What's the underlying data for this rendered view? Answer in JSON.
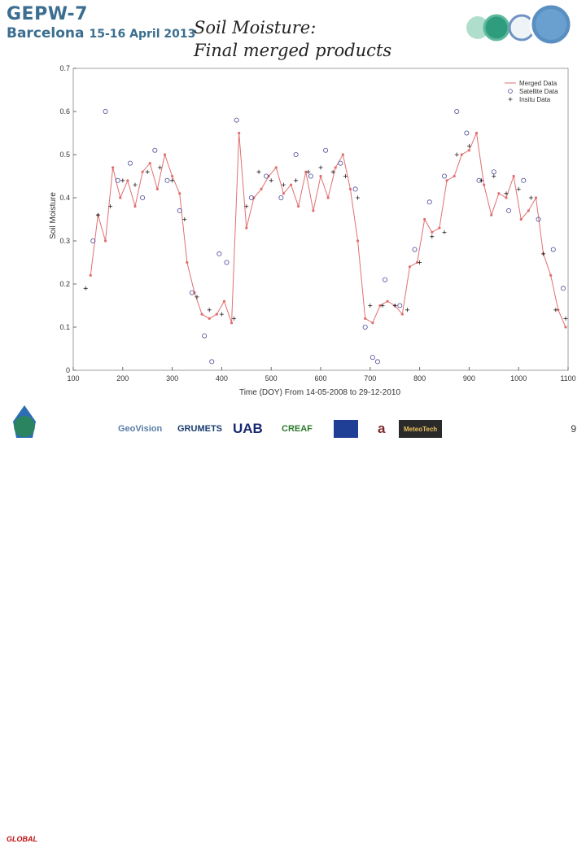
{
  "header": {
    "conference": "GEPW-7",
    "city": "Barcelona",
    "dates": "15-16 April 2013",
    "title_line1": "Soil Moisture:",
    "title_line2": "Final merged products"
  },
  "footer": {
    "slide_number": "9",
    "logos": [
      "GeoVision",
      "GRUMETS",
      "UAB",
      "CREAF",
      "EU flag",
      "a",
      "MeteoTech"
    ],
    "badge": "GLOBAL"
  },
  "colors": {
    "merged": "#e07070",
    "satellite": "#4a4a9a",
    "insitu": "#222222",
    "header_blue": "#3b6e8f"
  },
  "chart_data": {
    "type": "line",
    "ylabel": "Soil Moisture",
    "xlabel": "Time (DOY) From 14-05-2008 to 29-12-2010",
    "xlim": [
      100,
      1100
    ],
    "ylim": [
      0,
      0.7
    ],
    "xticks": [
      100,
      200,
      300,
      400,
      500,
      600,
      700,
      800,
      900,
      1000,
      1100
    ],
    "yticks": [
      0,
      0.1,
      0.2,
      0.3,
      0.4,
      0.5,
      0.6,
      0.7
    ],
    "grid": false,
    "legend_position": "top-right",
    "legend": [
      "Merged Data",
      "Satellite Data",
      "Insitu Data"
    ],
    "series": [
      {
        "name": "Merged Data",
        "style": "line",
        "x": [
          135,
          150,
          165,
          180,
          195,
          210,
          225,
          240,
          255,
          270,
          285,
          300,
          315,
          330,
          345,
          360,
          375,
          390,
          405,
          420,
          435,
          450,
          465,
          480,
          495,
          510,
          525,
          540,
          555,
          570,
          585,
          600,
          615,
          630,
          645,
          660,
          675,
          690,
          705,
          720,
          735,
          750,
          765,
          780,
          795,
          810,
          825,
          840,
          855,
          870,
          885,
          900,
          915,
          930,
          945,
          960,
          975,
          990,
          1005,
          1020,
          1035,
          1050,
          1065,
          1080,
          1095
        ],
        "y": [
          0.22,
          0.36,
          0.3,
          0.47,
          0.4,
          0.44,
          0.38,
          0.46,
          0.48,
          0.42,
          0.5,
          0.45,
          0.41,
          0.25,
          0.18,
          0.13,
          0.12,
          0.13,
          0.16,
          0.11,
          0.55,
          0.33,
          0.4,
          0.42,
          0.45,
          0.47,
          0.41,
          0.43,
          0.38,
          0.46,
          0.37,
          0.45,
          0.4,
          0.47,
          0.5,
          0.42,
          0.3,
          0.12,
          0.11,
          0.15,
          0.16,
          0.15,
          0.13,
          0.24,
          0.25,
          0.35,
          0.32,
          0.33,
          0.44,
          0.45,
          0.5,
          0.51,
          0.55,
          0.43,
          0.36,
          0.41,
          0.4,
          0.45,
          0.35,
          0.37,
          0.4,
          0.27,
          0.22,
          0.14,
          0.1
        ]
      },
      {
        "name": "Satellite Data",
        "style": "circle",
        "x": [
          140,
          165,
          190,
          215,
          240,
          265,
          290,
          315,
          340,
          365,
          380,
          395,
          410,
          430,
          460,
          490,
          520,
          550,
          580,
          610,
          640,
          670,
          690,
          705,
          715,
          730,
          760,
          790,
          820,
          850,
          875,
          895,
          920,
          950,
          980,
          1010,
          1040,
          1070,
          1090
        ],
        "y": [
          0.3,
          0.6,
          0.44,
          0.48,
          0.4,
          0.51,
          0.44,
          0.37,
          0.18,
          0.08,
          0.02,
          0.27,
          0.25,
          0.58,
          0.4,
          0.45,
          0.4,
          0.5,
          0.45,
          0.51,
          0.48,
          0.42,
          0.1,
          0.03,
          0.02,
          0.21,
          0.15,
          0.28,
          0.39,
          0.45,
          0.6,
          0.55,
          0.44,
          0.46,
          0.37,
          0.44,
          0.35,
          0.28,
          0.19
        ]
      },
      {
        "name": "Insitu Data",
        "style": "plus",
        "x": [
          125,
          150,
          175,
          200,
          225,
          250,
          275,
          300,
          325,
          350,
          375,
          400,
          425,
          450,
          475,
          500,
          525,
          550,
          575,
          600,
          625,
          650,
          675,
          700,
          725,
          750,
          775,
          800,
          825,
          850,
          875,
          900,
          925,
          950,
          975,
          1000,
          1025,
          1050,
          1075,
          1095
        ],
        "y": [
          0.19,
          0.36,
          0.38,
          0.44,
          0.43,
          0.46,
          0.47,
          0.44,
          0.35,
          0.17,
          0.14,
          0.13,
          0.12,
          0.38,
          0.46,
          0.44,
          0.43,
          0.44,
          0.46,
          0.47,
          0.46,
          0.45,
          0.4,
          0.15,
          0.15,
          0.15,
          0.14,
          0.25,
          0.31,
          0.32,
          0.5,
          0.52,
          0.44,
          0.45,
          0.41,
          0.42,
          0.4,
          0.27,
          0.14,
          0.12
        ]
      }
    ]
  }
}
